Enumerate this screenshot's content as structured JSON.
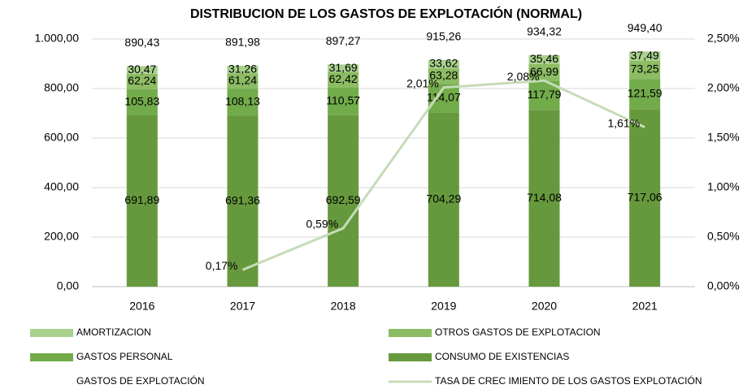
{
  "chart_data": {
    "type": "bar",
    "title": "DISTRIBUCION DE LOS GASTOS DE EXPLOTACIÓN (NORMAL)",
    "categories": [
      "2016",
      "2017",
      "2018",
      "2019",
      "2020",
      "2021"
    ],
    "series": [
      {
        "name": "AMORTIZACION",
        "color": "#a9d18e",
        "values": [
          30.47,
          31.26,
          31.69,
          33.62,
          35.46,
          37.49
        ],
        "value_labels": [
          "30,47",
          "31,26",
          "31,69",
          "33,62",
          "35,46",
          "37,49"
        ]
      },
      {
        "name": "OTROS GASTOS DE EXPLOTACION",
        "color": "#8cbc63",
        "values": [
          62.24,
          61.24,
          62.42,
          63.28,
          66.99,
          73.25
        ],
        "value_labels": [
          "62,24",
          "61,24",
          "62,42",
          "63,28",
          "66,99",
          "73,25"
        ]
      },
      {
        "name": "GASTOS PERSONAL",
        "color": "#72ab4a",
        "values": [
          105.83,
          108.13,
          110.57,
          114.07,
          117.79,
          121.59
        ],
        "value_labels": [
          "105,83",
          "108,13",
          "110,57",
          "114,07",
          "117,79",
          "121,59"
        ]
      },
      {
        "name": "CONSUMO DE EXISTENCIAS",
        "color": "#66993d",
        "values": [
          691.89,
          691.36,
          692.59,
          704.29,
          714.08,
          717.06
        ],
        "value_labels": [
          "691,89",
          "691,36",
          "692,59",
          "704,29",
          "714,08",
          "717,06"
        ]
      },
      {
        "name": "GASTOS DE EXPLOTACIÓN",
        "values": [
          890.43,
          891.98,
          897.27,
          915.26,
          934.32,
          949.4
        ],
        "value_labels": [
          "890,43",
          "891,98",
          "897,27",
          "915,26",
          "934,32",
          "949,40"
        ]
      },
      {
        "name": "TASA DE CREC IMIENTO DE LOS GASTOS EXPLOTACIÓN",
        "color": "#c5dcb8",
        "axis": "y2",
        "values": [
          null,
          0.17,
          0.59,
          2.01,
          2.08,
          1.61
        ],
        "value_labels": [
          null,
          "0,17%",
          "0,59%",
          "2,01%",
          "2,08%",
          "1,61%"
        ]
      }
    ],
    "ylim": [
      0,
      1000
    ],
    "yticks": [
      {
        "value": 0,
        "label": "0,00"
      },
      {
        "value": 200,
        "label": "200,00"
      },
      {
        "value": 400,
        "label": "400,00"
      },
      {
        "value": 600,
        "label": "600,00"
      },
      {
        "value": 800,
        "label": "800,00"
      },
      {
        "value": 1000,
        "label": "1.000,00"
      }
    ],
    "y2lim": [
      0,
      2.5
    ],
    "y2ticks": [
      {
        "value": 0,
        "label": "0,00%"
      },
      {
        "value": 0.5,
        "label": "0,50%"
      },
      {
        "value": 1,
        "label": "1,00%"
      },
      {
        "value": 1.5,
        "label": "1,50%"
      },
      {
        "value": 2,
        "label": "2,00%"
      },
      {
        "value": 2.5,
        "label": "2,50%"
      }
    ],
    "grid": true
  }
}
